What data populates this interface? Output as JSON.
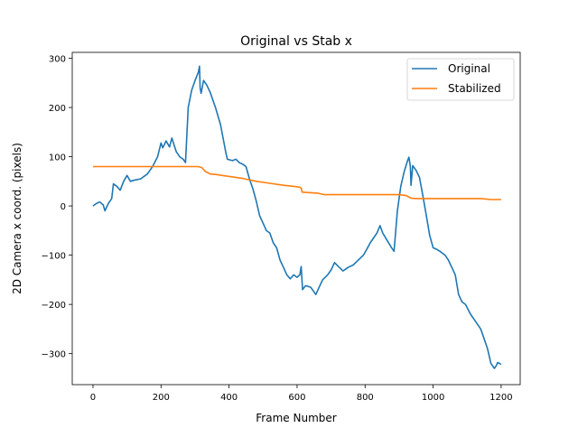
{
  "chart_data": {
    "type": "line",
    "title": "Original vs Stab x",
    "xlabel": "Frame Number",
    "ylabel": "2D Camera x coord. (pixels)",
    "xlim": [
      -61,
      1256
    ],
    "ylim": [
      -363,
      312
    ],
    "xticks": [
      0,
      200,
      400,
      600,
      800,
      1000,
      1200
    ],
    "xtick_labels": [
      "0",
      "200",
      "400",
      "600",
      "800",
      "1000",
      "1200"
    ],
    "yticks": [
      -300,
      -200,
      -100,
      0,
      100,
      200,
      300
    ],
    "ytick_labels": [
      "−300",
      "−200",
      "−100",
      "0",
      "100",
      "200",
      "300"
    ],
    "grid": false,
    "legend_position": "top-right",
    "series": [
      {
        "name": "Original",
        "color": "#1f77b4",
        "x": [
          0,
          10,
          20,
          30,
          35,
          45,
          55,
          60,
          70,
          80,
          90,
          100,
          110,
          120,
          140,
          160,
          175,
          190,
          200,
          205,
          215,
          225,
          232,
          245,
          255,
          265,
          272,
          280,
          290,
          300,
          310,
          313,
          315,
          318,
          325,
          335,
          345,
          360,
          375,
          390,
          395,
          410,
          420,
          430,
          440,
          450,
          460,
          470,
          480,
          490,
          500,
          510,
          520,
          530,
          540,
          550,
          560,
          570,
          580,
          590,
          600,
          608,
          612,
          616,
          625,
          640,
          655,
          665,
          675,
          690,
          700,
          710,
          720,
          735,
          750,
          765,
          780,
          795,
          805,
          815,
          825,
          835,
          844,
          852,
          865,
          878,
          885,
          890,
          895,
          905,
          915,
          925,
          929,
          933,
          935,
          940,
          950,
          960,
          970,
          980,
          990,
          1000,
          1010,
          1020,
          1035,
          1045,
          1055,
          1065,
          1075,
          1085,
          1095,
          1110,
          1125,
          1140,
          1150,
          1160,
          1170,
          1180,
          1185,
          1190,
          1200
        ],
        "y": [
          0,
          5,
          8,
          2,
          -10,
          5,
          15,
          45,
          40,
          32,
          50,
          62,
          50,
          52,
          55,
          65,
          80,
          100,
          128,
          118,
          132,
          120,
          138,
          110,
          100,
          95,
          88,
          200,
          235,
          255,
          272,
          284,
          240,
          229,
          255,
          245,
          230,
          200,
          165,
          110,
          95,
          92,
          95,
          88,
          85,
          80,
          55,
          35,
          10,
          -20,
          -35,
          -50,
          -55,
          -75,
          -85,
          -110,
          -125,
          -140,
          -148,
          -140,
          -145,
          -140,
          -123,
          -170,
          -162,
          -165,
          -180,
          -165,
          -150,
          -140,
          -130,
          -115,
          -122,
          -132,
          -125,
          -120,
          -110,
          -100,
          -88,
          -75,
          -65,
          -55,
          -40,
          -55,
          -70,
          -85,
          -92,
          -50,
          -10,
          40,
          70,
          92,
          99,
          80,
          42,
          82,
          72,
          58,
          20,
          -20,
          -60,
          -85,
          -88,
          -92,
          -100,
          -110,
          -125,
          -140,
          -180,
          -195,
          -200,
          -220,
          -235,
          -250,
          -270,
          -290,
          -320,
          -330,
          -325,
          -318,
          -322
        ]
      },
      {
        "name": "Stabilized",
        "color": "#ff7f0e",
        "x": [
          0,
          100,
          200,
          310,
          320,
          330,
          345,
          360,
          400,
          440,
          480,
          520,
          560,
          600,
          608,
          612,
          615,
          640,
          660,
          680,
          720,
          800,
          880,
          900,
          920,
          935,
          950,
          1000,
          1100,
          1140,
          1170,
          1200
        ],
        "y": [
          80,
          80,
          80,
          80,
          78,
          70,
          65,
          64,
          60,
          56,
          50,
          46,
          42,
          39,
          38,
          36,
          28,
          27,
          26,
          23,
          23,
          23,
          23,
          23,
          21,
          16,
          15,
          15,
          15,
          15,
          13,
          13
        ]
      }
    ]
  }
}
